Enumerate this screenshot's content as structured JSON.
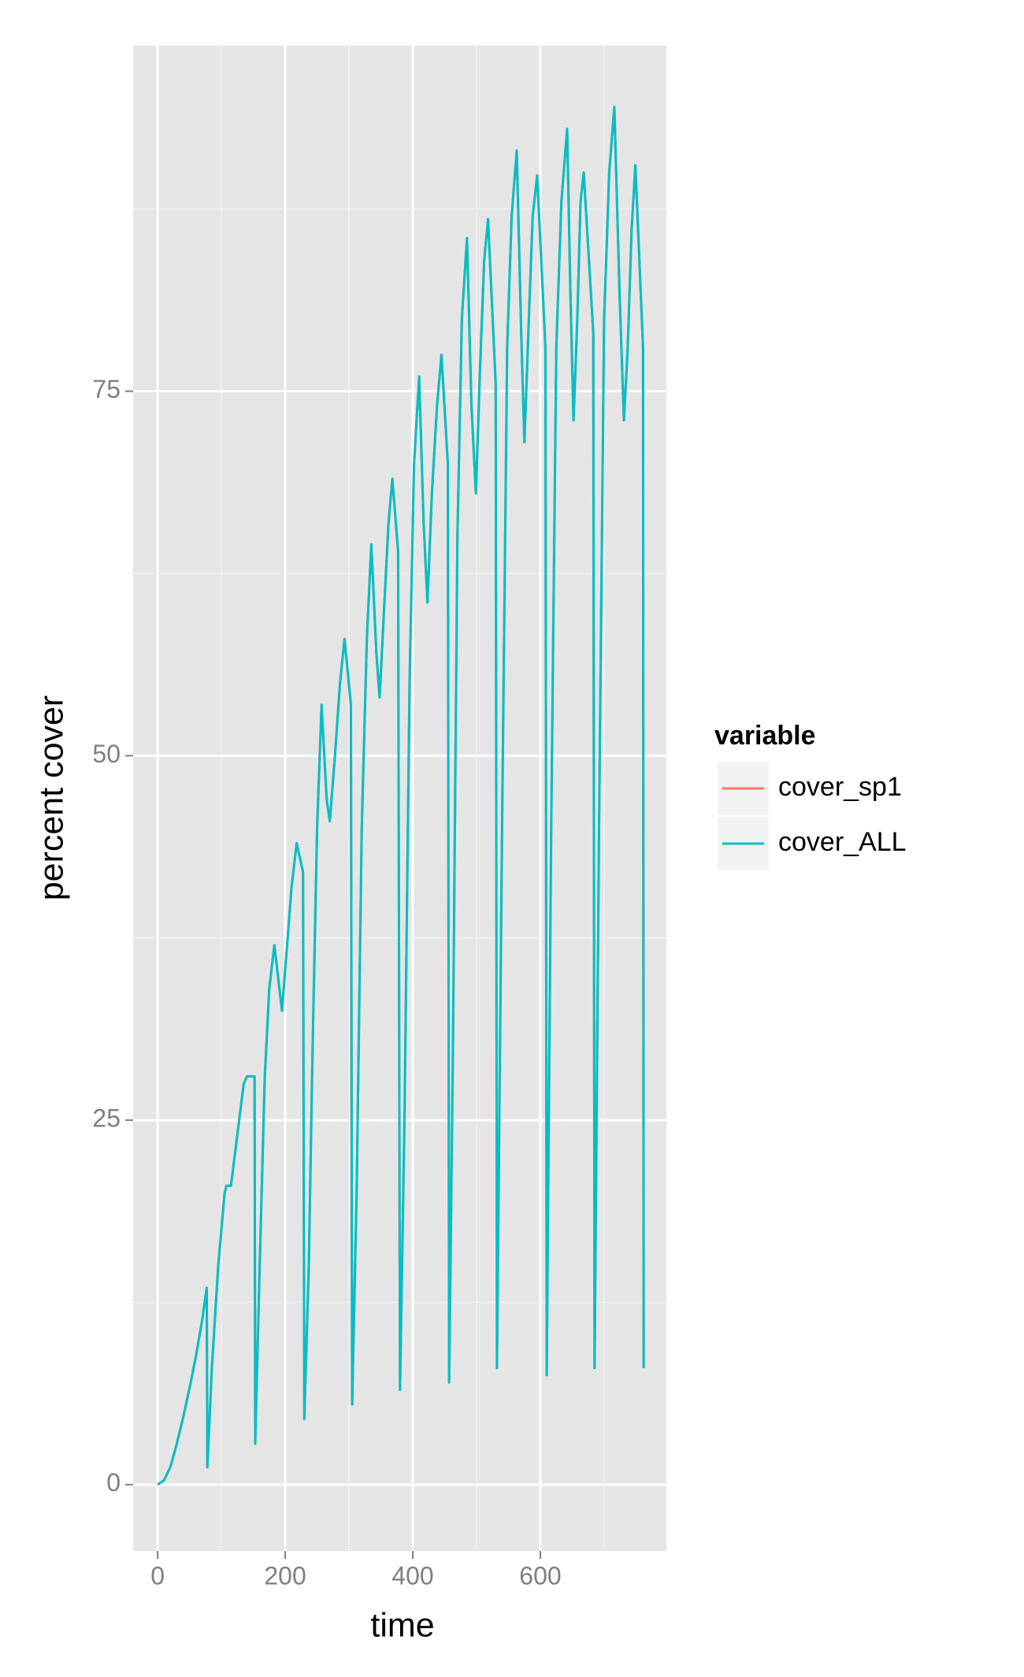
{
  "chart_data": {
    "type": "line",
    "x_label": "time",
    "y_label": "percent cover",
    "x": [
      0,
      10,
      20,
      30,
      40,
      50,
      60,
      70,
      77,
      78,
      85,
      95,
      105,
      108,
      115,
      125,
      135,
      140,
      152,
      153,
      160,
      168,
      175,
      183,
      195,
      203,
      210,
      218,
      228,
      230,
      237,
      243,
      250,
      257,
      265,
      270,
      278,
      286,
      293,
      303,
      305,
      312,
      320,
      328,
      335,
      343,
      348,
      355,
      362,
      368,
      377,
      380,
      387,
      395,
      402,
      410,
      417,
      423,
      430,
      438,
      445,
      455,
      457,
      463,
      470,
      477,
      485,
      492,
      499,
      505,
      512,
      518,
      530,
      532,
      540,
      548,
      555,
      563,
      570,
      575,
      582,
      588,
      595,
      608,
      610,
      617,
      625,
      633,
      642,
      647,
      652,
      658,
      663,
      668,
      683,
      685,
      692,
      700,
      708,
      716,
      724,
      731,
      737,
      743,
      749,
      761,
      762
    ],
    "series": [
      {
        "name": "cover_sp1",
        "color": "#f8766d",
        "values": [
          0,
          0.3,
          1.2,
          2.8,
          4.6,
          6.6,
          8.8,
          11.3,
          13.5,
          1.2,
          8,
          15,
          20,
          20.5,
          20.5,
          24,
          27.5,
          28,
          28,
          2.8,
          15,
          28,
          34,
          37,
          32.5,
          37,
          41,
          44,
          42,
          4.5,
          15,
          30,
          45,
          53.5,
          47,
          45.5,
          50,
          55,
          58,
          53.5,
          5.5,
          20,
          45,
          58,
          64.5,
          57,
          54,
          60,
          66,
          69,
          64,
          6.5,
          25,
          55,
          70,
          76,
          66,
          60.5,
          68,
          74,
          77.5,
          70,
          7,
          30,
          65,
          80,
          85.5,
          74,
          68,
          76,
          84,
          86.8,
          75.5,
          8,
          45,
          78,
          87,
          91.5,
          79,
          71.5,
          80,
          87,
          89.8,
          78,
          7.5,
          45,
          78,
          88,
          93,
          82,
          73,
          80,
          88,
          90,
          79,
          8,
          45,
          80,
          90,
          94.5,
          82,
          73,
          78,
          86,
          90.5,
          78,
          8
        ]
      },
      {
        "name": "cover_ALL",
        "color": "#00bfc4",
        "values": [
          0,
          0.3,
          1.2,
          2.8,
          4.6,
          6.6,
          8.8,
          11.3,
          13.5,
          1.2,
          8,
          15,
          20,
          20.5,
          20.5,
          24,
          27.5,
          28,
          28,
          2.8,
          15,
          28,
          34,
          37,
          32.5,
          37,
          41,
          44,
          42,
          4.5,
          15,
          30,
          45,
          53.5,
          47,
          45.5,
          50,
          55,
          58,
          53.5,
          5.5,
          20,
          45,
          58,
          64.5,
          57,
          54,
          60,
          66,
          69,
          64,
          6.5,
          25,
          55,
          70,
          76,
          66,
          60.5,
          68,
          74,
          77.5,
          70,
          7,
          30,
          65,
          80,
          85.5,
          74,
          68,
          76,
          84,
          86.8,
          75.5,
          8,
          45,
          78,
          87,
          91.5,
          79,
          71.5,
          80,
          87,
          89.8,
          78,
          7.5,
          45,
          78,
          88,
          93,
          82,
          73,
          80,
          88,
          90,
          79,
          8,
          45,
          80,
          90,
          94.5,
          82,
          73,
          78,
          86,
          90.5,
          78,
          8
        ]
      }
    ],
    "legend_title": "variable",
    "legend": "right",
    "xlim": [
      -38.4,
      797.6
    ],
    "ylim": [
      -4.55,
      98.7
    ],
    "xticks": [
      0,
      200,
      400,
      600
    ],
    "yticks": [
      0,
      25,
      50,
      75
    ],
    "x_minor_ticks": [
      100,
      300,
      500,
      700
    ],
    "y_minor_ticks": [
      12.5,
      37.5,
      62.5,
      87.5
    ],
    "grid": true
  }
}
